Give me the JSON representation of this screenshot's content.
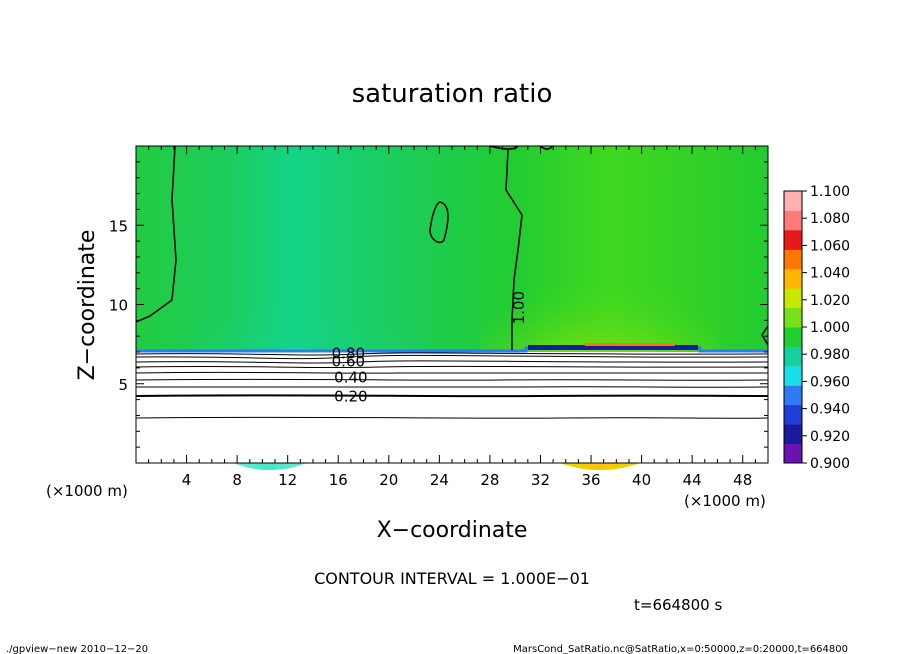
{
  "chart_data": {
    "type": "heatmap",
    "title": "saturation ratio",
    "xlabel": "X−coordinate",
    "ylabel": "Z−coordinate",
    "x_unit_label": "(×1000 m)",
    "y_unit_label": "(×1000 m)",
    "xlim": [
      0,
      50
    ],
    "ylim": [
      0,
      20
    ],
    "x_ticks": [
      4,
      8,
      12,
      16,
      20,
      24,
      28,
      32,
      36,
      40,
      44,
      48
    ],
    "y_ticks": [
      5,
      10,
      15
    ],
    "colorbar": {
      "levels": [
        "0.900",
        "0.920",
        "0.940",
        "0.960",
        "0.980",
        "1.000",
        "1.020",
        "1.040",
        "1.060",
        "1.080",
        "1.100"
      ],
      "colors": [
        "#6a12b4",
        "#1a1a9c",
        "#1f3ed8",
        "#2f7af0",
        "#17e0e8",
        "#16d0a0",
        "#20d030",
        "#78e018",
        "#c8e800",
        "#ffb800",
        "#ff7800",
        "#e81818",
        "#ff7a7a",
        "#ffb0b0"
      ]
    },
    "contour_labels": [
      "0.80",
      "0.60",
      "0.40",
      "0.20",
      "1.00"
    ],
    "contour_label_positions_data": [
      {
        "label": "0.80",
        "x": 16.8,
        "z": 6.9
      },
      {
        "label": "0.60",
        "x": 16.8,
        "z": 6.4
      },
      {
        "label": "0.40",
        "x": 17.0,
        "z": 5.4
      },
      {
        "label": "0.20",
        "x": 17.0,
        "z": 4.2
      },
      {
        "label": "1.00",
        "x": 30.3,
        "z": 9.8
      }
    ],
    "contour_interval_text": "CONTOUR INTERVAL = 1.000E−01",
    "time_text": "t=664800 s",
    "footer_left": "./gpview−new   2010−12−20",
    "footer_right": "MarsCond_SatRatio.nc@SatRatio,x=0:50000,z=0:20000,t=664800"
  }
}
